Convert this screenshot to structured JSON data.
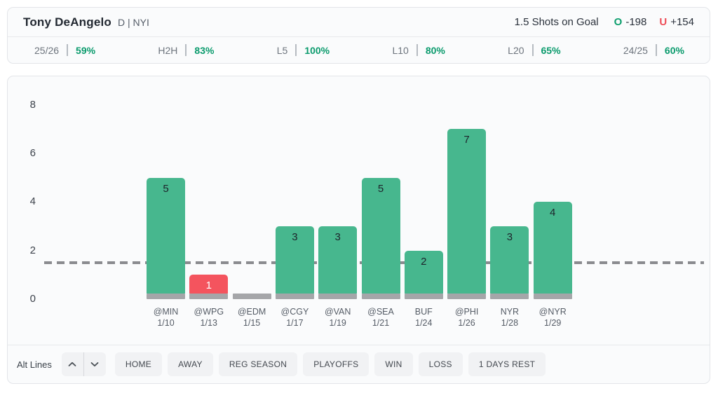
{
  "header": {
    "player_name": "Tony DeAngelo",
    "player_meta": "D | NYI",
    "prop_label": "1.5 Shots on Goal",
    "over": {
      "prefix": "O",
      "odds": "-198"
    },
    "under": {
      "prefix": "U",
      "odds": "+154"
    }
  },
  "splits": [
    {
      "label": "25/26",
      "value": "59%"
    },
    {
      "label": "H2H",
      "value": "83%"
    },
    {
      "label": "L5",
      "value": "100%"
    },
    {
      "label": "L10",
      "value": "80%"
    },
    {
      "label": "L20",
      "value": "65%"
    },
    {
      "label": "24/25",
      "value": "60%"
    }
  ],
  "chart_data": {
    "type": "bar",
    "categories": [
      "@MIN",
      "@WPG",
      "@EDM",
      "@CGY",
      "@VAN",
      "@SEA",
      "BUF",
      "@PHI",
      "NYR",
      "@NYR"
    ],
    "dates": [
      "1/10",
      "1/13",
      "1/15",
      "1/17",
      "1/19",
      "1/21",
      "1/24",
      "1/26",
      "1/28",
      "1/29"
    ],
    "values": [
      5,
      1,
      0,
      3,
      3,
      5,
      2,
      7,
      3,
      4
    ],
    "prop_line": 1.5,
    "ylim": [
      0,
      8
    ],
    "yticks": [
      0,
      2,
      4,
      6,
      8
    ],
    "grid": false,
    "legend": "none",
    "title": "",
    "xlabel": "",
    "ylabel": "",
    "colors": {
      "over_bar": "#47b78e",
      "under_bar": "#f4545e",
      "zero_bar": "#a5a6a9",
      "line": "#8a8b8f"
    }
  },
  "footer": {
    "alt_lines_label": "Alt Lines",
    "filters": [
      "HOME",
      "AWAY",
      "REG SEASON",
      "PLAYOFFS",
      "WIN",
      "LOSS",
      "1 DAYS REST"
    ]
  },
  "colors": {
    "accent_green": "#0e9f6e",
    "accent_red": "#ee4d57",
    "card_bg": "#fafbfc",
    "card_border": "#e3e5e9"
  }
}
